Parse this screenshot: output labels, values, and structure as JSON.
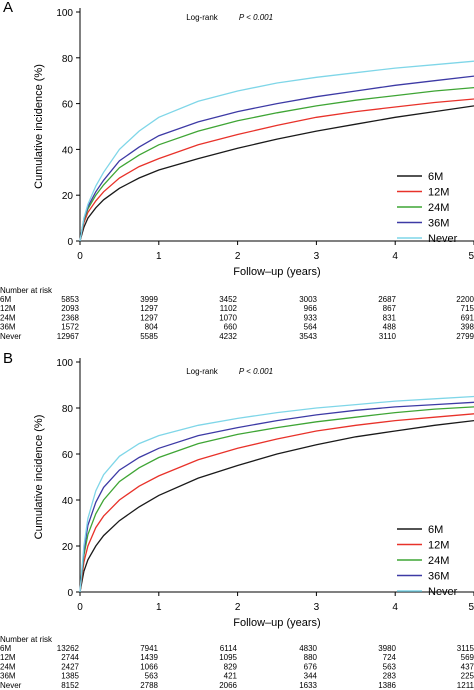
{
  "chart_data": [
    {
      "type": "line",
      "panel_label": "A",
      "annotation": "Log-rank",
      "annotation_p": "P < 0.001",
      "xlabel": "Follow–up (years)",
      "ylabel": "Cumulative incidence (%)",
      "xlim": [
        0,
        5
      ],
      "ylim": [
        0,
        100
      ],
      "xticks": [
        0,
        1,
        2,
        3,
        4,
        5
      ],
      "yticks": [
        0,
        20,
        40,
        60,
        80,
        100
      ],
      "grid": false,
      "legend_position": "bottom-right",
      "series": [
        {
          "name": "6M",
          "color": "#1a1a1a",
          "x": [
            0,
            0.05,
            0.1,
            0.2,
            0.3,
            0.5,
            0.75,
            1,
            1.5,
            2,
            2.5,
            3,
            3.5,
            4,
            4.5,
            5
          ],
          "values": [
            0,
            6,
            10,
            14.5,
            18,
            23,
            27.5,
            31,
            36,
            40.5,
            44.5,
            48,
            51,
            54,
            56.5,
            59
          ]
        },
        {
          "name": "12M",
          "color": "#e8322a",
          "x": [
            0,
            0.05,
            0.1,
            0.2,
            0.3,
            0.5,
            0.75,
            1,
            1.5,
            2,
            2.5,
            3,
            3.5,
            4,
            4.5,
            5
          ],
          "values": [
            0,
            8,
            12.5,
            17.5,
            21.5,
            27.5,
            32.5,
            36,
            42,
            46.5,
            50.5,
            54,
            56.5,
            58.5,
            60.5,
            62
          ]
        },
        {
          "name": "24M",
          "color": "#3fa535",
          "x": [
            0,
            0.05,
            0.1,
            0.2,
            0.3,
            0.5,
            0.75,
            1,
            1.5,
            2,
            2.5,
            3,
            3.5,
            4,
            4.5,
            5
          ],
          "values": [
            0,
            9,
            14,
            20,
            24.5,
            32,
            37.5,
            42,
            48,
            52.5,
            56,
            59,
            61.5,
            63.5,
            65.5,
            67
          ]
        },
        {
          "name": "36M",
          "color": "#3d3aa5",
          "x": [
            0,
            0.05,
            0.1,
            0.2,
            0.3,
            0.5,
            0.75,
            1,
            1.5,
            2,
            2.5,
            3,
            3.5,
            4,
            4.5,
            5
          ],
          "values": [
            0,
            9.5,
            15,
            21.5,
            26.5,
            35,
            41,
            46,
            52,
            56.5,
            60,
            63,
            65.5,
            68,
            70,
            72
          ]
        },
        {
          "name": "Never",
          "color": "#7fd6e8",
          "x": [
            0,
            0.05,
            0.1,
            0.2,
            0.3,
            0.5,
            0.75,
            1,
            1.5,
            2,
            2.5,
            3,
            3.5,
            4,
            4.5,
            5
          ],
          "values": [
            0,
            10,
            16,
            24,
            30,
            40,
            48,
            54,
            61,
            65.5,
            69,
            71.5,
            73.5,
            75.5,
            77,
            78.5
          ]
        }
      ],
      "risk_table": {
        "title": "Number at risk",
        "rows": [
          {
            "label": "6M",
            "values": [
              "5853",
              "3999",
              "3452",
              "3003",
              "2687",
              "2200"
            ]
          },
          {
            "label": "12M",
            "values": [
              "2093",
              "1297",
              "1102",
              "966",
              "867",
              "715"
            ]
          },
          {
            "label": "24M",
            "values": [
              "2368",
              "1297",
              "1070",
              "933",
              "831",
              "691"
            ]
          },
          {
            "label": "36M",
            "values": [
              "1572",
              "804",
              "660",
              "564",
              "488",
              "398"
            ]
          },
          {
            "label": "Never",
            "values": [
              "12967",
              "5585",
              "4232",
              "3543",
              "3110",
              "2799"
            ]
          }
        ]
      }
    },
    {
      "type": "line",
      "panel_label": "B",
      "annotation": "Log-rank",
      "annotation_p": "P < 0.001",
      "xlabel": "Follow–up (years)",
      "ylabel": "Cumulative incidence (%)",
      "xlim": [
        0,
        5
      ],
      "ylim": [
        0,
        100
      ],
      "xticks": [
        0,
        1,
        2,
        3,
        4,
        5
      ],
      "yticks": [
        0,
        20,
        40,
        60,
        80,
        100
      ],
      "grid": false,
      "legend_position": "bottom-right",
      "series": [
        {
          "name": "6M",
          "color": "#1a1a1a",
          "x": [
            0,
            0.05,
            0.1,
            0.2,
            0.3,
            0.5,
            0.75,
            1,
            1.5,
            2,
            2.5,
            3,
            3.5,
            4,
            4.5,
            5
          ],
          "values": [
            0,
            9,
            14,
            20,
            24.5,
            31,
            37,
            42,
            49.5,
            55,
            60,
            64,
            67.5,
            70,
            72.5,
            74.5
          ]
        },
        {
          "name": "12M",
          "color": "#e8322a",
          "x": [
            0,
            0.05,
            0.1,
            0.2,
            0.3,
            0.5,
            0.75,
            1,
            1.5,
            2,
            2.5,
            3,
            3.5,
            4,
            4.5,
            5
          ],
          "values": [
            0,
            13,
            20,
            28,
            33,
            40,
            46,
            50.5,
            57.5,
            62.5,
            66.5,
            70,
            72.5,
            74.5,
            76,
            77.5
          ]
        },
        {
          "name": "24M",
          "color": "#3fa535",
          "x": [
            0,
            0.05,
            0.1,
            0.2,
            0.3,
            0.5,
            0.75,
            1,
            1.5,
            2,
            2.5,
            3,
            3.5,
            4,
            4.5,
            5
          ],
          "values": [
            0,
            16,
            25,
            34,
            40,
            48,
            54,
            58.5,
            64.5,
            68.5,
            71.5,
            74,
            76,
            78,
            79.5,
            80.5
          ]
        },
        {
          "name": "36M",
          "color": "#3d3aa5",
          "x": [
            0,
            0.05,
            0.1,
            0.2,
            0.3,
            0.5,
            0.75,
            1,
            1.5,
            2,
            2.5,
            3,
            3.5,
            4,
            4.5,
            5
          ],
          "values": [
            0,
            18,
            29,
            39,
            45.5,
            53,
            58.5,
            62.5,
            68,
            71.5,
            74.5,
            77,
            79,
            80.5,
            81.5,
            82.5
          ]
        },
        {
          "name": "Never",
          "color": "#7fd6e8",
          "x": [
            0,
            0.05,
            0.1,
            0.2,
            0.3,
            0.5,
            0.75,
            1,
            1.5,
            2,
            2.5,
            3,
            3.5,
            4,
            4.5,
            5
          ],
          "values": [
            0,
            20,
            32,
            44,
            51,
            59,
            64.5,
            68,
            72.5,
            75.5,
            78,
            80,
            81.5,
            83,
            84,
            85
          ]
        }
      ],
      "risk_table": {
        "title": "Number at risk",
        "rows": [
          {
            "label": "6M",
            "values": [
              "13262",
              "7941",
              "6114",
              "4830",
              "3980",
              "3115"
            ]
          },
          {
            "label": "12M",
            "values": [
              "2744",
              "1439",
              "1095",
              "880",
              "724",
              "569"
            ]
          },
          {
            "label": "24M",
            "values": [
              "2427",
              "1066",
              "829",
              "676",
              "563",
              "437"
            ]
          },
          {
            "label": "36M",
            "values": [
              "1385",
              "563",
              "421",
              "344",
              "283",
              "225"
            ]
          },
          {
            "label": "Never",
            "values": [
              "8152",
              "2788",
              "2066",
              "1633",
              "1386",
              "1211"
            ]
          }
        ]
      }
    }
  ]
}
